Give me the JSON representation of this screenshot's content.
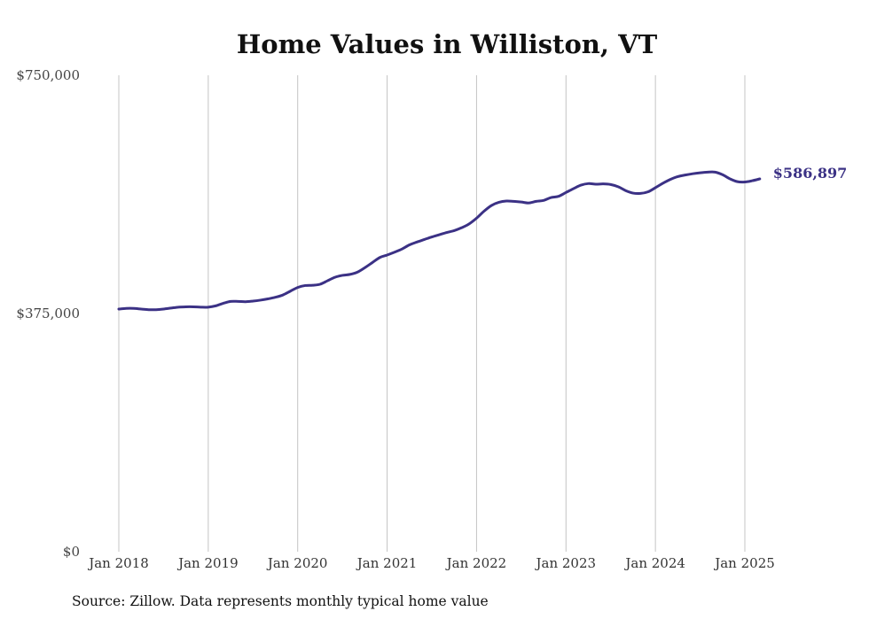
{
  "chart_data": {
    "type": "line",
    "title": "Home Values in Williston, VT",
    "source": "Source: Zillow. Data represents monthly typical home value",
    "ylim": [
      0,
      750000
    ],
    "y_ticks": [
      {
        "value": 0,
        "label": "$0"
      },
      {
        "value": 375000,
        "label": "$375,000"
      },
      {
        "value": 750000,
        "label": "$750,000"
      }
    ],
    "x_range": [
      "2018-01",
      "2025-05"
    ],
    "x_ticks": [
      {
        "date": "2018-01",
        "label": "Jan 2018"
      },
      {
        "date": "2019-01",
        "label": "Jan 2019"
      },
      {
        "date": "2020-01",
        "label": "Jan 2020"
      },
      {
        "date": "2021-01",
        "label": "Jan 2021"
      },
      {
        "date": "2022-01",
        "label": "Jan 2022"
      },
      {
        "date": "2023-01",
        "label": "Jan 2023"
      },
      {
        "date": "2024-01",
        "label": "Jan 2024"
      },
      {
        "date": "2025-01",
        "label": "Jan 2025"
      }
    ],
    "grid": {
      "vertical": true,
      "horizontal": false
    },
    "series": [
      {
        "color": "#3b3185",
        "end_label": "$586,897",
        "points": [
          [
            "2018-01",
            382000
          ],
          [
            "2018-02",
            383000
          ],
          [
            "2018-03",
            383000
          ],
          [
            "2018-04",
            382000
          ],
          [
            "2018-05",
            381000
          ],
          [
            "2018-06",
            381000
          ],
          [
            "2018-07",
            382000
          ],
          [
            "2018-08",
            383500
          ],
          [
            "2018-09",
            385000
          ],
          [
            "2018-10",
            385500
          ],
          [
            "2018-11",
            385500
          ],
          [
            "2018-12",
            385000
          ],
          [
            "2019-01",
            385000
          ],
          [
            "2019-02",
            387000
          ],
          [
            "2019-03",
            391000
          ],
          [
            "2019-04",
            394000
          ],
          [
            "2019-05",
            394000
          ],
          [
            "2019-06",
            393500
          ],
          [
            "2019-07",
            394500
          ],
          [
            "2019-08",
            396000
          ],
          [
            "2019-09",
            398000
          ],
          [
            "2019-10",
            400500
          ],
          [
            "2019-11",
            404000
          ],
          [
            "2019-12",
            410000
          ],
          [
            "2020-01",
            416000
          ],
          [
            "2020-02",
            419000
          ],
          [
            "2020-03",
            419500
          ],
          [
            "2020-04",
            421000
          ],
          [
            "2020-05",
            426500
          ],
          [
            "2020-06",
            432000
          ],
          [
            "2020-07",
            435000
          ],
          [
            "2020-08",
            436500
          ],
          [
            "2020-09",
            440000
          ],
          [
            "2020-10",
            447000
          ],
          [
            "2020-11",
            455000
          ],
          [
            "2020-12",
            463000
          ],
          [
            "2021-01",
            467000
          ],
          [
            "2021-02",
            471500
          ],
          [
            "2021-03",
            476500
          ],
          [
            "2021-04",
            483000
          ],
          [
            "2021-05",
            487500
          ],
          [
            "2021-06",
            491500
          ],
          [
            "2021-07",
            495500
          ],
          [
            "2021-08",
            499000
          ],
          [
            "2021-09",
            502500
          ],
          [
            "2021-10",
            505500
          ],
          [
            "2021-11",
            510000
          ],
          [
            "2021-12",
            516000
          ],
          [
            "2022-01",
            525000
          ],
          [
            "2022-02",
            536000
          ],
          [
            "2022-03",
            545000
          ],
          [
            "2022-04",
            550000
          ],
          [
            "2022-05",
            552000
          ],
          [
            "2022-06",
            551500
          ],
          [
            "2022-07",
            550500
          ],
          [
            "2022-08",
            549000
          ],
          [
            "2022-09",
            551500
          ],
          [
            "2022-10",
            553000
          ],
          [
            "2022-11",
            557500
          ],
          [
            "2022-12",
            559500
          ],
          [
            "2023-01",
            565500
          ],
          [
            "2023-02",
            571500
          ],
          [
            "2023-03",
            577000
          ],
          [
            "2023-04",
            579500
          ],
          [
            "2023-05",
            578500
          ],
          [
            "2023-06",
            579000
          ],
          [
            "2023-07",
            578000
          ],
          [
            "2023-08",
            574500
          ],
          [
            "2023-09",
            568500
          ],
          [
            "2023-10",
            564500
          ],
          [
            "2023-11",
            564000
          ],
          [
            "2023-12",
            566500
          ],
          [
            "2024-01",
            573000
          ],
          [
            "2024-02",
            580000
          ],
          [
            "2024-03",
            586000
          ],
          [
            "2024-04",
            590500
          ],
          [
            "2024-05",
            593000
          ],
          [
            "2024-06",
            595000
          ],
          [
            "2024-07",
            596500
          ],
          [
            "2024-08",
            597500
          ],
          [
            "2024-09",
            597500
          ],
          [
            "2024-10",
            593500
          ],
          [
            "2024-11",
            587000
          ],
          [
            "2024-12",
            582500
          ],
          [
            "2025-01",
            582000
          ],
          [
            "2025-02",
            584000
          ],
          [
            "2025-03",
            586897
          ]
        ]
      }
    ]
  }
}
